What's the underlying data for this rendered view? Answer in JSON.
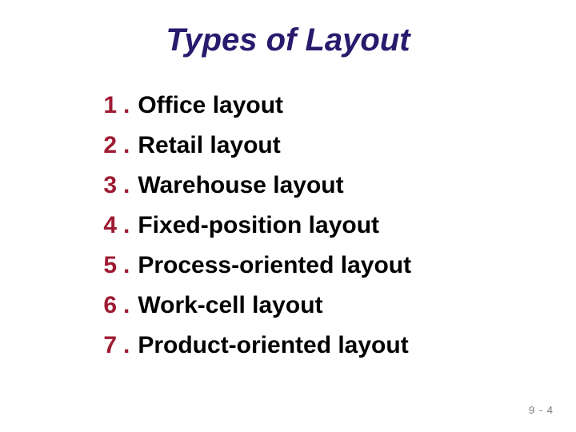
{
  "title": {
    "text": "Types of Layout",
    "color": "#2a1a6e",
    "fontsize": 40
  },
  "list": {
    "number_color": "#9e1b32",
    "text_color": "#000000",
    "fontsize": 30,
    "items": [
      {
        "num": "1",
        "text": "Office layout"
      },
      {
        "num": "2",
        "text": "Retail layout"
      },
      {
        "num": "3",
        "text": "Warehouse layout"
      },
      {
        "num": "4",
        "text": "Fixed-position layout"
      },
      {
        "num": "5",
        "text": "Process-oriented layout"
      },
      {
        "num": "6",
        "text": "Work-cell layout"
      },
      {
        "num": "7",
        "text": "Product-oriented layout"
      }
    ]
  },
  "footer": {
    "text": "9 - 4",
    "color": "#7a7a7a",
    "fontsize": 13
  },
  "background_color": "#ffffff"
}
